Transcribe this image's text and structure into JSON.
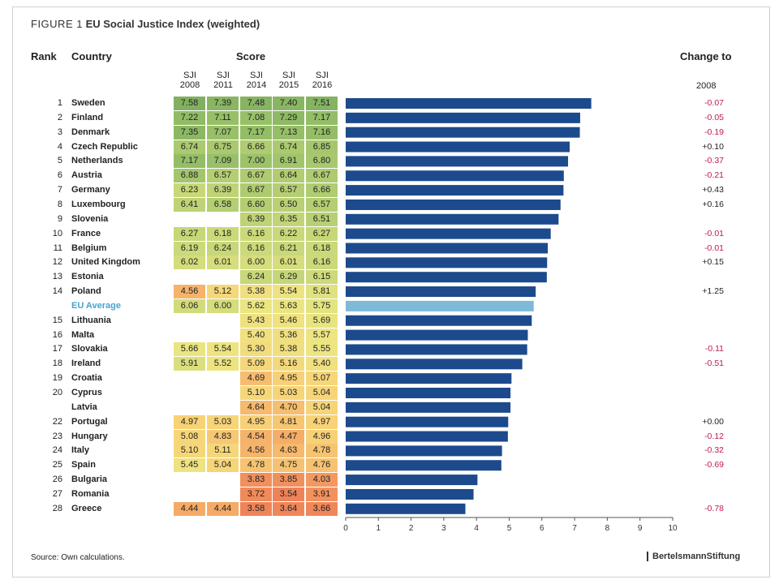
{
  "figure_label": "FIGURE 1",
  "title": "EU Social Justice Index (weighted)",
  "headers": {
    "rank": "Rank",
    "country": "Country",
    "score": "Score",
    "change": "Change to",
    "change_year": "2008",
    "sji_prefix": "SJI",
    "years": [
      "2008",
      "2011",
      "2014",
      "2015",
      "2016"
    ]
  },
  "source": "Source: Own calculations.",
  "brand": "BertelsmannStiftung",
  "colors": {
    "bar": "#1c4a8c",
    "bar_average": "#7fb9d8",
    "negative_change": "#c0185a",
    "positive_change": "#222222",
    "average_label": "#4aa3cf"
  },
  "chart_data": {
    "type": "bar",
    "orientation": "horizontal",
    "title": "EU Social Justice Index (weighted)",
    "xlim": [
      0,
      10
    ],
    "xticks": [
      "0",
      "1",
      "2",
      "3",
      "4",
      "5",
      "6",
      "7",
      "8",
      "9",
      "10"
    ],
    "rows": [
      {
        "rank": "1",
        "country": "Sweden",
        "scores": [
          "7.58",
          "7.39",
          "7.48",
          "7.40",
          "7.51"
        ],
        "value": 7.51,
        "change": "-0.07"
      },
      {
        "rank": "2",
        "country": "Finland",
        "scores": [
          "7.22",
          "7.11",
          "7.08",
          "7.29",
          "7.17"
        ],
        "value": 7.17,
        "change": "-0.05"
      },
      {
        "rank": "3",
        "country": "Denmark",
        "scores": [
          "7.35",
          "7.07",
          "7.17",
          "7.13",
          "7.16"
        ],
        "value": 7.16,
        "change": "-0.19"
      },
      {
        "rank": "4",
        "country": "Czech Republic",
        "scores": [
          "6.74",
          "6.75",
          "6.66",
          "6.74",
          "6.85"
        ],
        "value": 6.85,
        "change": "+0.10"
      },
      {
        "rank": "5",
        "country": "Netherlands",
        "scores": [
          "7.17",
          "7.09",
          "7.00",
          "6.91",
          "6.80"
        ],
        "value": 6.8,
        "change": "-0.37"
      },
      {
        "rank": "6",
        "country": "Austria",
        "scores": [
          "6.88",
          "6.57",
          "6.67",
          "6.64",
          "6.67"
        ],
        "value": 6.67,
        "change": "-0.21"
      },
      {
        "rank": "7",
        "country": "Germany",
        "scores": [
          "6.23",
          "6.39",
          "6.67",
          "6.57",
          "6.66"
        ],
        "value": 6.66,
        "change": "+0.43"
      },
      {
        "rank": "8",
        "country": "Luxembourg",
        "scores": [
          "6.41",
          "6.58",
          "6.60",
          "6.50",
          "6.57"
        ],
        "value": 6.57,
        "change": "+0.16"
      },
      {
        "rank": "9",
        "country": "Slovenia",
        "scores": [
          "",
          "",
          "6.39",
          "6.35",
          "6.51"
        ],
        "value": 6.51,
        "change": ""
      },
      {
        "rank": "10",
        "country": "France",
        "scores": [
          "6.27",
          "6.18",
          "6.16",
          "6.22",
          "6.27"
        ],
        "value": 6.27,
        "change": "-0.01"
      },
      {
        "rank": "11",
        "country": "Belgium",
        "scores": [
          "6.19",
          "6.24",
          "6.16",
          "6.21",
          "6.18"
        ],
        "value": 6.18,
        "change": "-0.01"
      },
      {
        "rank": "12",
        "country": "United Kingdom",
        "scores": [
          "6.02",
          "6.01",
          "6.00",
          "6.01",
          "6.16"
        ],
        "value": 6.16,
        "change": "+0.15"
      },
      {
        "rank": "13",
        "country": "Estonia",
        "scores": [
          "",
          "",
          "6.24",
          "6.29",
          "6.15"
        ],
        "value": 6.15,
        "change": ""
      },
      {
        "rank": "14",
        "country": "Poland",
        "scores": [
          "4.56",
          "5.12",
          "5.38",
          "5.54",
          "5.81"
        ],
        "value": 5.81,
        "change": "+1.25"
      },
      {
        "rank": "",
        "country": "EU Average",
        "scores": [
          "6.06",
          "6.00",
          "5.62",
          "5.63",
          "5.75"
        ],
        "value": 5.75,
        "change": "",
        "average": true
      },
      {
        "rank": "15",
        "country": "Lithuania",
        "scores": [
          "",
          "",
          "5.43",
          "5.46",
          "5.69"
        ],
        "value": 5.69,
        "change": ""
      },
      {
        "rank": "16",
        "country": "Malta",
        "scores": [
          "",
          "",
          "5.40",
          "5.36",
          "5.57"
        ],
        "value": 5.57,
        "change": ""
      },
      {
        "rank": "17",
        "country": "Slovakia",
        "scores": [
          "5.66",
          "5.54",
          "5.30",
          "5.38",
          "5.55"
        ],
        "value": 5.55,
        "change": "-0.11"
      },
      {
        "rank": "18",
        "country": "Ireland",
        "scores": [
          "5.91",
          "5.52",
          "5.09",
          "5.16",
          "5.40"
        ],
        "value": 5.4,
        "change": "-0.51"
      },
      {
        "rank": "19",
        "country": "Croatia",
        "scores": [
          "",
          "",
          "4.69",
          "4.95",
          "5.07"
        ],
        "value": 5.07,
        "change": ""
      },
      {
        "rank": "20",
        "country": "Cyprus",
        "scores": [
          "",
          "",
          "5.10",
          "5.03",
          "5.04"
        ],
        "value": 5.04,
        "change": ""
      },
      {
        "rank": "",
        "country": "Latvia",
        "scores": [
          "",
          "",
          "4.64",
          "4.70",
          "5.04"
        ],
        "value": 5.04,
        "change": ""
      },
      {
        "rank": "22",
        "country": "Portugal",
        "scores": [
          "4.97",
          "5.03",
          "4.95",
          "4.81",
          "4.97"
        ],
        "value": 4.97,
        "change": "+0.00"
      },
      {
        "rank": "23",
        "country": "Hungary",
        "scores": [
          "5.08",
          "4.83",
          "4.54",
          "4.47",
          "4.96"
        ],
        "value": 4.96,
        "change": "-0.12"
      },
      {
        "rank": "24",
        "country": "Italy",
        "scores": [
          "5.10",
          "5.11",
          "4.56",
          "4.63",
          "4.78"
        ],
        "value": 4.78,
        "change": "-0.32"
      },
      {
        "rank": "25",
        "country": "Spain",
        "scores": [
          "5.45",
          "5.04",
          "4.78",
          "4.75",
          "4.76"
        ],
        "value": 4.76,
        "change": "-0.69"
      },
      {
        "rank": "26",
        "country": "Bulgaria",
        "scores": [
          "",
          "",
          "3.83",
          "3.85",
          "4.03"
        ],
        "value": 4.03,
        "change": ""
      },
      {
        "rank": "27",
        "country": "Romania",
        "scores": [
          "",
          "",
          "3.72",
          "3.54",
          "3.91"
        ],
        "value": 3.91,
        "change": ""
      },
      {
        "rank": "28",
        "country": "Greece",
        "scores": [
          "4.44",
          "4.44",
          "3.58",
          "3.64",
          "3.66"
        ],
        "value": 3.66,
        "change": "-0.78"
      }
    ]
  }
}
